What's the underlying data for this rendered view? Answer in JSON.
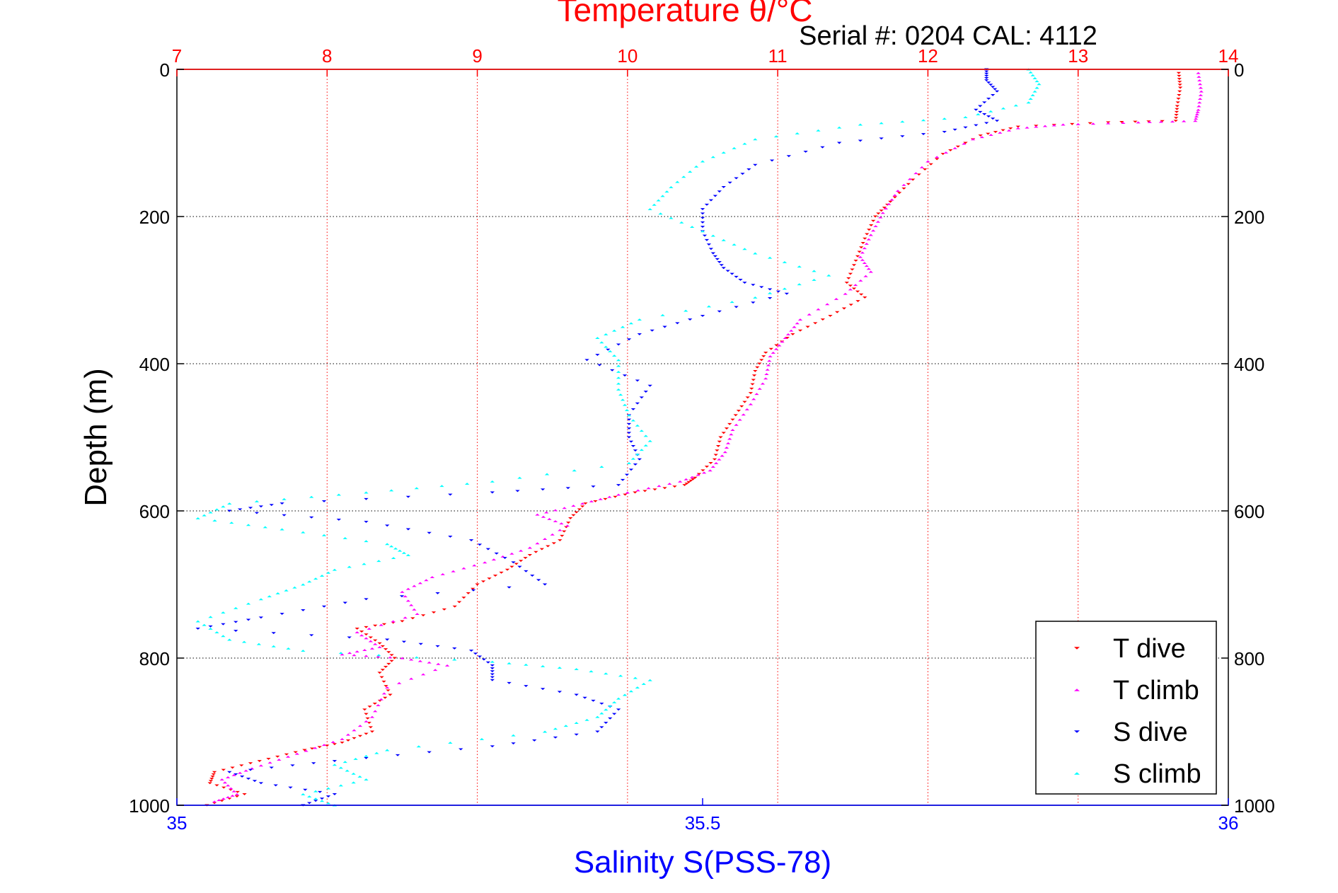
{
  "title": "Temperature θ/°C",
  "serial_text": "Serial #: 0204  CAL: 4112",
  "ylabel": "Depth (m)",
  "xlabel_bottom": "Salinity S(PSS-78)",
  "colors": {
    "temperature_axis": "#ff0000",
    "salinity_axis": "#0000ff",
    "t_dive": "#ff0000",
    "t_climb": "#ff00ff",
    "s_dive": "#0000ff",
    "s_climb": "#00ffff"
  },
  "chart_data": {
    "type": "scatter",
    "title": "Temperature θ/°C",
    "xlabel": "Salinity S(PSS-78)",
    "ylabel": "Depth (m)",
    "temperature_axis": {
      "range": [
        7,
        14
      ],
      "ticks": [
        7,
        8,
        9,
        10,
        11,
        12,
        13,
        14
      ],
      "tick_labels": [
        "7",
        "8",
        "9",
        "10",
        "11",
        "12",
        "13",
        "14"
      ]
    },
    "salinity_axis": {
      "range": [
        35,
        36
      ],
      "ticks": [
        35,
        35.5,
        36
      ],
      "tick_labels": [
        "35",
        "35.5",
        "36"
      ]
    },
    "depth_axis": {
      "range": [
        0,
        1000
      ],
      "reversed": true,
      "ticks": [
        0,
        200,
        400,
        600,
        800,
        1000
      ],
      "tick_labels": [
        "0",
        "200",
        "400",
        "600",
        "800",
        "1000"
      ]
    },
    "grid": true,
    "legend": {
      "placement": "bottom-right",
      "entries": [
        "T dive",
        "T climb",
        "S dive",
        "S climb"
      ]
    },
    "series": [
      {
        "name": "T dive",
        "axis": "temperature",
        "marker": "triangle-down",
        "color": "#ff0000",
        "points": [
          [
            13.67,
            5
          ],
          [
            13.68,
            25
          ],
          [
            13.66,
            50
          ],
          [
            13.65,
            70
          ],
          [
            13.2,
            72
          ],
          [
            12.6,
            78
          ],
          [
            12.35,
            90
          ],
          [
            12.1,
            115
          ],
          [
            11.9,
            150
          ],
          [
            11.75,
            180
          ],
          [
            11.65,
            200
          ],
          [
            11.58,
            230
          ],
          [
            11.52,
            260
          ],
          [
            11.46,
            290
          ],
          [
            11.58,
            310
          ],
          [
            11.35,
            335
          ],
          [
            11.1,
            360
          ],
          [
            10.92,
            385
          ],
          [
            10.85,
            410
          ],
          [
            10.82,
            440
          ],
          [
            10.72,
            470
          ],
          [
            10.62,
            500
          ],
          [
            10.58,
            530
          ],
          [
            10.45,
            555
          ],
          [
            10.38,
            565
          ],
          [
            10.05,
            575
          ],
          [
            9.72,
            590
          ],
          [
            9.62,
            610
          ],
          [
            9.55,
            640
          ],
          [
            9.35,
            660
          ],
          [
            9.2,
            680
          ],
          [
            9.0,
            700
          ],
          [
            8.85,
            730
          ],
          [
            8.5,
            750
          ],
          [
            8.2,
            760
          ],
          [
            8.35,
            780
          ],
          [
            8.45,
            800
          ],
          [
            8.35,
            820
          ],
          [
            8.42,
            850
          ],
          [
            8.25,
            870
          ],
          [
            8.3,
            900
          ],
          [
            8.1,
            915
          ],
          [
            7.85,
            925
          ],
          [
            7.55,
            940
          ],
          [
            7.25,
            955
          ],
          [
            7.22,
            970
          ],
          [
            7.45,
            985
          ],
          [
            7.2,
            1000
          ]
        ]
      },
      {
        "name": "T climb",
        "axis": "temperature",
        "marker": "triangle-up",
        "color": "#ff00ff",
        "points": [
          [
            13.8,
            5
          ],
          [
            13.82,
            30
          ],
          [
            13.8,
            55
          ],
          [
            13.78,
            70
          ],
          [
            13.4,
            72
          ],
          [
            12.9,
            75
          ],
          [
            12.6,
            80
          ],
          [
            12.3,
            95
          ],
          [
            12.0,
            125
          ],
          [
            11.8,
            165
          ],
          [
            11.7,
            195
          ],
          [
            11.62,
            225
          ],
          [
            11.55,
            255
          ],
          [
            11.62,
            275
          ],
          [
            11.45,
            305
          ],
          [
            11.15,
            340
          ],
          [
            11.05,
            365
          ],
          [
            10.95,
            390
          ],
          [
            10.92,
            420
          ],
          [
            10.82,
            455
          ],
          [
            10.7,
            490
          ],
          [
            10.65,
            520
          ],
          [
            10.55,
            545
          ],
          [
            10.35,
            560
          ],
          [
            10.0,
            575
          ],
          [
            9.7,
            590
          ],
          [
            9.4,
            605
          ],
          [
            9.6,
            620
          ],
          [
            9.35,
            650
          ],
          [
            9.05,
            670
          ],
          [
            8.7,
            690
          ],
          [
            8.5,
            710
          ],
          [
            8.6,
            740
          ],
          [
            8.2,
            765
          ],
          [
            8.35,
            785
          ],
          [
            8.1,
            795
          ],
          [
            8.5,
            800
          ],
          [
            8.8,
            810
          ],
          [
            8.4,
            840
          ],
          [
            8.3,
            880
          ],
          [
            8.1,
            910
          ],
          [
            7.8,
            930
          ],
          [
            7.5,
            950
          ],
          [
            7.3,
            965
          ],
          [
            7.4,
            985
          ],
          [
            7.25,
            995
          ]
        ]
      },
      {
        "name": "S dive",
        "axis": "salinity",
        "marker": "triangle-down",
        "color": "#0000ff",
        "points": [
          [
            35.77,
            0
          ],
          [
            35.77,
            15
          ],
          [
            35.78,
            30
          ],
          [
            35.76,
            55
          ],
          [
            35.78,
            70
          ],
          [
            35.73,
            85
          ],
          [
            35.63,
            100
          ],
          [
            35.55,
            130
          ],
          [
            35.52,
            160
          ],
          [
            35.5,
            190
          ],
          [
            35.5,
            220
          ],
          [
            35.51,
            250
          ],
          [
            35.52,
            270
          ],
          [
            35.54,
            290
          ],
          [
            35.58,
            305
          ],
          [
            35.5,
            335
          ],
          [
            35.44,
            360
          ],
          [
            35.39,
            395
          ],
          [
            35.45,
            430
          ],
          [
            35.43,
            470
          ],
          [
            35.43,
            500
          ],
          [
            35.44,
            530
          ],
          [
            35.42,
            565
          ],
          [
            35.3,
            575
          ],
          [
            35.1,
            590
          ],
          [
            35.05,
            600
          ],
          [
            35.18,
            615
          ],
          [
            35.28,
            640
          ],
          [
            35.32,
            670
          ],
          [
            35.35,
            700
          ],
          [
            35.18,
            720
          ],
          [
            35.08,
            745
          ],
          [
            35.02,
            760
          ],
          [
            35.2,
            775
          ],
          [
            35.28,
            790
          ],
          [
            35.3,
            810
          ],
          [
            35.3,
            830
          ],
          [
            35.38,
            850
          ],
          [
            35.42,
            870
          ],
          [
            35.4,
            900
          ],
          [
            35.3,
            920
          ],
          [
            35.15,
            940
          ],
          [
            35.05,
            955
          ],
          [
            35.08,
            970
          ],
          [
            35.15,
            985
          ],
          [
            35.12,
            1000
          ]
        ]
      },
      {
        "name": "S climb",
        "axis": "salinity",
        "marker": "triangle-up",
        "color": "#00ffff",
        "points": [
          [
            35.81,
            0
          ],
          [
            35.82,
            20
          ],
          [
            35.81,
            45
          ],
          [
            35.75,
            65
          ],
          [
            35.65,
            75
          ],
          [
            35.55,
            95
          ],
          [
            35.5,
            125
          ],
          [
            35.47,
            160
          ],
          [
            35.45,
            190
          ],
          [
            35.5,
            220
          ],
          [
            35.55,
            250
          ],
          [
            35.62,
            280
          ],
          [
            35.55,
            310
          ],
          [
            35.44,
            340
          ],
          [
            35.4,
            365
          ],
          [
            35.42,
            395
          ],
          [
            35.42,
            435
          ],
          [
            35.43,
            470
          ],
          [
            35.45,
            505
          ],
          [
            35.43,
            535
          ],
          [
            35.3,
            560
          ],
          [
            35.18,
            575
          ],
          [
            35.05,
            590
          ],
          [
            35.02,
            610
          ],
          [
            35.1,
            625
          ],
          [
            35.2,
            645
          ],
          [
            35.22,
            660
          ],
          [
            35.15,
            680
          ],
          [
            35.12,
            700
          ],
          [
            35.08,
            720
          ],
          [
            35.02,
            750
          ],
          [
            35.05,
            775
          ],
          [
            35.12,
            790
          ],
          [
            35.3,
            805
          ],
          [
            35.38,
            815
          ],
          [
            35.45,
            830
          ],
          [
            35.42,
            855
          ],
          [
            35.4,
            880
          ],
          [
            35.35,
            900
          ],
          [
            35.2,
            925
          ],
          [
            35.15,
            945
          ],
          [
            35.18,
            965
          ],
          [
            35.12,
            985
          ],
          [
            35.15,
            1000
          ]
        ]
      }
    ]
  }
}
